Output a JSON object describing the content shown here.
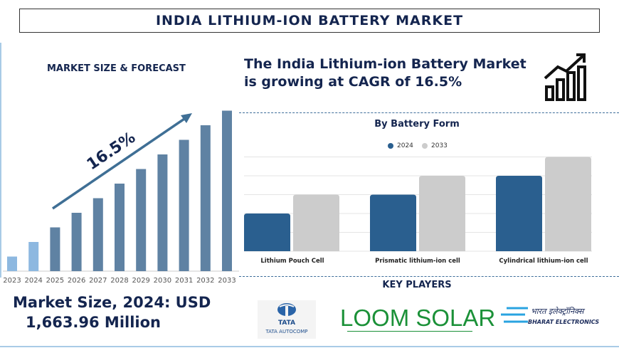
{
  "title": "INDIA LITHIUM-ION BATTERY MARKET",
  "left": {
    "label": "MARKET SIZE & FORECAST",
    "market_size_line1": "Market Size, 2024: USD",
    "market_size_line2": "1,663.96 Million"
  },
  "headline": "The India Lithium-ion Battery Market is growing at CAGR of 16.5%",
  "key_players_title": "KEY PLAYERS",
  "key_players": [
    "TATA AUTOCOMP",
    "LOOM SOLAR",
    "BHARAT ELECTRONICS"
  ],
  "logo_text": {
    "tata": "TATA",
    "tata_sub": "TATA AUTOCOMP",
    "loom": "LOOM SOLAR",
    "bel_hindi": "भारत इलेक्ट्रॉनिक्स",
    "bel": "BHARAT ELECTRONICS"
  },
  "icons": [
    "growth-chart-icon"
  ],
  "chart_data": [
    {
      "type": "bar",
      "title": "",
      "categories": [
        "2023",
        "2024",
        "2025",
        "2026",
        "2027",
        "2028",
        "2029",
        "2030",
        "2031",
        "2032",
        "2033"
      ],
      "values": [
        1,
        2,
        3,
        4,
        5,
        6,
        7,
        8,
        9,
        10,
        11
      ],
      "annotation": "16.5%",
      "colors": {
        "historic": "#8db8e0",
        "forecast": "#5f82a3"
      }
    },
    {
      "type": "bar",
      "title": "By Battery Form",
      "categories": [
        "Lithium Pouch Cell",
        "Prismatic lithium-ion cell",
        "Cylindrical lithium-ion cell"
      ],
      "series": [
        {
          "name": "2024",
          "values": [
            2,
            3,
            4
          ],
          "color": "#2a5f8f"
        },
        {
          "name": "2033",
          "values": [
            3,
            4,
            5
          ],
          "color": "#cccccc"
        }
      ],
      "ylim": [
        0,
        5
      ],
      "grid": true,
      "legend": "top"
    }
  ]
}
